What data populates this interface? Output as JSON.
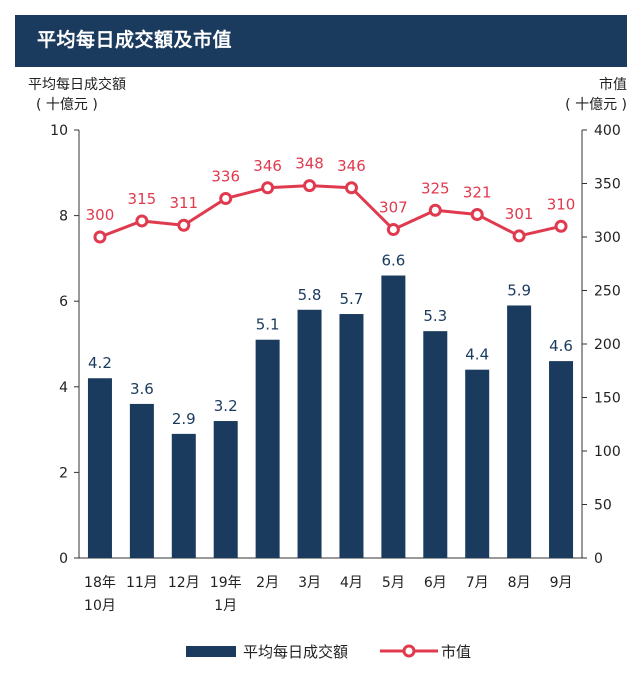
{
  "header": {
    "title": "平均每日成交額及市值"
  },
  "chart_data": {
    "type": "bar+line",
    "title": "平均每日成交額及市值",
    "categories": [
      [
        "18年",
        "10月"
      ],
      [
        "11月"
      ],
      [
        "12月"
      ],
      [
        "19年",
        "1月"
      ],
      [
        "2月"
      ],
      [
        "3月"
      ],
      [
        "4月"
      ],
      [
        "5月"
      ],
      [
        "6月"
      ],
      [
        "7月"
      ],
      [
        "8月"
      ],
      [
        "9月"
      ]
    ],
    "series": [
      {
        "name": "平均每日成交額",
        "type": "bar",
        "axis": "left",
        "color": "#1a3a5e",
        "values": [
          4.2,
          3.6,
          2.9,
          3.2,
          5.1,
          5.8,
          5.7,
          6.6,
          5.3,
          4.4,
          5.9,
          4.6
        ]
      },
      {
        "name": "市值",
        "type": "line",
        "axis": "right",
        "color": "#e03a4e",
        "values": [
          300,
          315,
          311,
          336,
          346,
          348,
          346,
          307,
          325,
          321,
          301,
          310
        ]
      }
    ],
    "left_axis": {
      "title_line1": "平均每日成交額",
      "title_line2": "( 十億元 )",
      "ylim": [
        0,
        10
      ],
      "ticks": [
        0,
        2,
        4,
        6,
        8,
        10
      ]
    },
    "right_axis": {
      "title_line1": "市值",
      "title_line2": "( 十億元 )",
      "ylim": [
        0,
        400
      ],
      "ticks": [
        0,
        50,
        100,
        150,
        200,
        250,
        300,
        350,
        400
      ]
    },
    "legend": {
      "bar_label": "平均每日成交額",
      "line_label": "市值",
      "position": "bottom"
    }
  }
}
